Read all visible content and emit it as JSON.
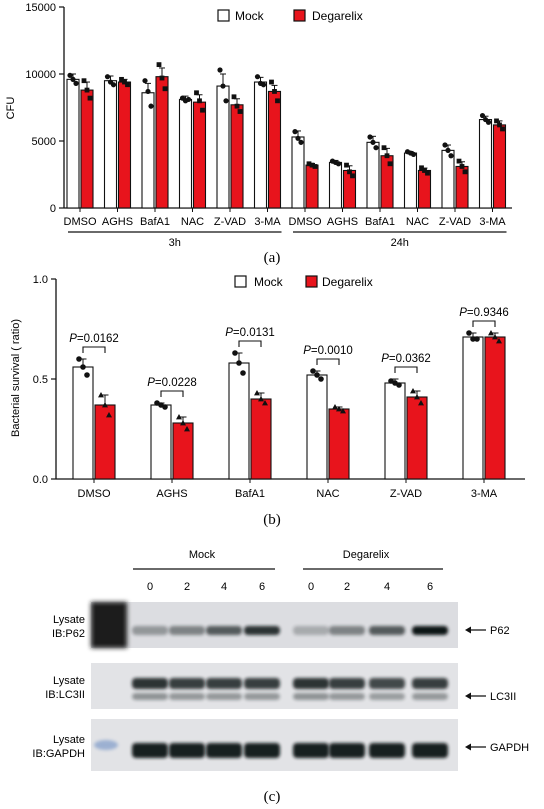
{
  "colors": {
    "mock": "#ffffff",
    "degarelix": "#e8141c",
    "axis": "#111111"
  },
  "legend": {
    "mock": "Mock",
    "degarelix": "Degarelix"
  },
  "panels": {
    "a": "(a)",
    "b": "(b)",
    "c": "(c)"
  },
  "chart_data": [
    {
      "type": "bar",
      "panel": "a",
      "ylabel": "CFU",
      "ylim": [
        0,
        15000
      ],
      "yticks": [
        0,
        5000,
        10000,
        15000
      ],
      "categories": [
        "DMSO",
        "AGHS",
        "BafA1",
        "NAC",
        "Z-VAD",
        "3-MA",
        "DMSO",
        "AGHS",
        "BafA1",
        "NAC",
        "Z-VAD",
        "3-MA"
      ],
      "groups": [
        {
          "label": "3h",
          "from": 0,
          "to": 5
        },
        {
          "label": "24h",
          "from": 6,
          "to": 11
        }
      ],
      "series": [
        {
          "name": "Mock",
          "values": [
            9600,
            9500,
            8600,
            8100,
            9100,
            9400,
            5300,
            3400,
            4900,
            4100,
            4300,
            6600
          ],
          "errors": [
            400,
            350,
            700,
            250,
            900,
            350,
            450,
            150,
            450,
            120,
            400,
            250
          ],
          "points": [
            [
              9900,
              9600,
              9300
            ],
            [
              9800,
              9400,
              9200
            ],
            [
              9500,
              8700,
              7600
            ],
            [
              8200,
              8000,
              8100
            ],
            [
              10300,
              9100,
              8000
            ],
            [
              9800,
              9300,
              9200
            ],
            [
              5700,
              5200,
              4900
            ],
            [
              3500,
              3400,
              3300
            ],
            [
              5300,
              4900,
              4500
            ],
            [
              4200,
              4100,
              4000
            ],
            [
              4700,
              4300,
              3900
            ],
            [
              6900,
              6600,
              6400
            ]
          ]
        },
        {
          "name": "Degarelix",
          "values": [
            8800,
            9400,
            9800,
            7900,
            7700,
            8700,
            3200,
            2800,
            3900,
            2800,
            3100,
            6200
          ],
          "errors": [
            600,
            200,
            650,
            550,
            450,
            450,
            120,
            350,
            550,
            180,
            350,
            300
          ],
          "points": [
            [
              9500,
              8800,
              8200
            ],
            [
              9600,
              9400,
              9200
            ],
            [
              10700,
              9700,
              8900
            ],
            [
              8600,
              8000,
              7300
            ],
            [
              8300,
              7600,
              7200
            ],
            [
              9400,
              8700,
              8000
            ],
            [
              3300,
              3200,
              3100
            ],
            [
              3200,
              2700,
              2400
            ],
            [
              4500,
              3900,
              3300
            ],
            [
              3000,
              2800,
              2600
            ],
            [
              3500,
              3100,
              2700
            ],
            [
              6500,
              6200,
              5900
            ]
          ]
        }
      ]
    },
    {
      "type": "bar",
      "panel": "b",
      "ylabel": "Bacterial survival ( ratio)",
      "ylim": [
        0,
        1.0
      ],
      "yticks": [
        0.0,
        0.5,
        1.0
      ],
      "ytick_labels": [
        "0.0",
        "0.5",
        "1.0"
      ],
      "categories": [
        "DMSO",
        "AGHS",
        "BafA1",
        "NAC",
        "Z-VAD",
        "3-MA"
      ],
      "series": [
        {
          "name": "Mock",
          "values": [
            0.56,
            0.37,
            0.58,
            0.52,
            0.48,
            0.71
          ],
          "errors": [
            0.04,
            0.01,
            0.05,
            0.02,
            0.02,
            0.02
          ],
          "points": [
            [
              0.6,
              0.56,
              0.52
            ],
            [
              0.38,
              0.37,
              0.36
            ],
            [
              0.63,
              0.58,
              0.53
            ],
            [
              0.54,
              0.52,
              0.5
            ],
            [
              0.49,
              0.48,
              0.47
            ],
            [
              0.73,
              0.7,
              0.7
            ]
          ]
        },
        {
          "name": "Degarelix",
          "values": [
            0.37,
            0.28,
            0.4,
            0.35,
            0.41,
            0.71
          ],
          "errors": [
            0.05,
            0.03,
            0.03,
            0.01,
            0.03,
            0.02
          ],
          "points": [
            [
              0.42,
              0.37,
              0.32
            ],
            [
              0.31,
              0.28,
              0.25
            ],
            [
              0.43,
              0.4,
              0.38
            ],
            [
              0.36,
              0.35,
              0.34
            ],
            [
              0.44,
              0.41,
              0.38
            ],
            [
              0.73,
              0.71,
              0.69
            ]
          ]
        }
      ],
      "pvalues": [
        "P=0.0162",
        "P=0.0228",
        "P=0.0131",
        "P=0.0010",
        "P=0.0362",
        "P=0.9346"
      ]
    }
  ],
  "blot": {
    "group_labels": [
      "Mock",
      "Degarelix"
    ],
    "lanes": [
      "0",
      "2",
      "4",
      "6",
      "0",
      "2",
      "4",
      "6"
    ],
    "rows": [
      {
        "left1": "Lysate",
        "left2": "IB:P62",
        "target": "P62",
        "intensities": [
          0.35,
          0.45,
          0.65,
          0.85,
          0.25,
          0.45,
          0.65,
          1.0
        ]
      },
      {
        "left1": "Lysate",
        "left2": "IB:LC3II",
        "target": "LC3II",
        "intensities": [
          0.85,
          0.8,
          0.8,
          0.8,
          0.85,
          0.8,
          0.75,
          0.8
        ]
      },
      {
        "left1": "Lysate",
        "left2": "IB:GAPDH",
        "target": "GAPDH",
        "intensities": [
          0.95,
          0.95,
          0.95,
          0.95,
          0.95,
          0.95,
          0.95,
          0.95
        ]
      }
    ]
  }
}
